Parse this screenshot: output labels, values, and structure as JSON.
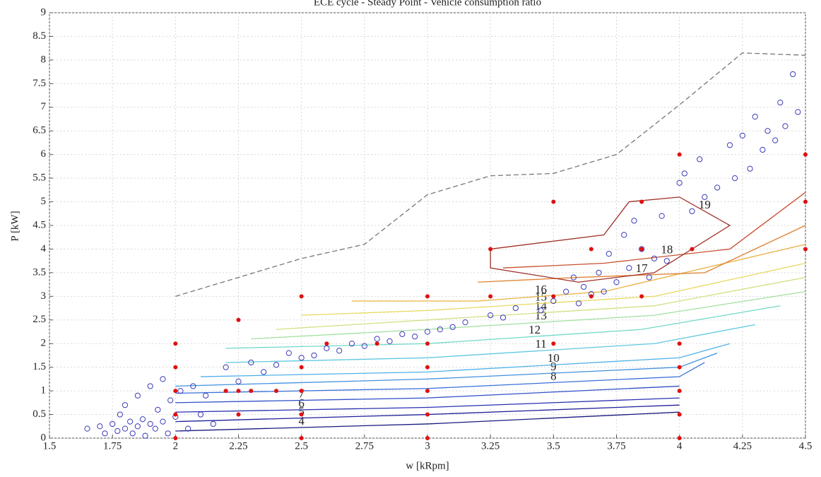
{
  "chart_data": {
    "type": "scatter",
    "title": "ECE cycle - Steady Point - Vehicle consumption ratio",
    "x_label": "w [kRpm]",
    "y_label": "P [kW]",
    "xlim": [
      1.5,
      4.5
    ],
    "xticks": [
      1.5,
      1.75,
      2,
      2.25,
      2.5,
      2.75,
      3,
      3.25,
      3.5,
      3.75,
      4,
      4.25,
      4.5
    ],
    "ylim": [
      0,
      9
    ],
    "yticks": [
      0,
      0.5,
      1,
      1.5,
      2,
      2.5,
      3,
      3.5,
      4,
      4.5,
      5,
      5.5,
      6,
      6.5,
      7,
      7.5,
      8,
      8.5,
      9
    ],
    "grid": true,
    "points": [
      {
        "kind": "circle",
        "color": "#3a3ab8",
        "x": [
          1.65,
          1.7,
          1.72,
          1.75,
          1.77,
          1.78,
          1.8,
          1.8,
          1.82,
          1.83,
          1.85,
          1.85,
          1.87,
          1.88,
          1.9,
          1.9,
          1.92,
          1.93,
          1.95,
          1.95,
          1.97,
          1.98,
          2,
          2.02,
          2.05,
          2.07,
          2.1,
          2.12,
          2.15,
          2.2,
          2.25,
          2.3,
          2.35,
          2.4,
          2.45,
          2.5,
          2.55,
          2.6,
          2.65,
          2.7,
          2.75,
          2.8,
          2.85,
          2.9,
          2.95,
          3,
          3.05,
          3.1,
          3.15,
          3.25,
          3.3,
          3.35,
          3.45,
          3.5,
          3.55,
          3.58,
          3.6,
          3.62,
          3.65,
          3.68,
          3.7,
          3.72,
          3.75,
          3.78,
          3.8,
          3.82,
          3.85,
          3.88,
          3.9,
          3.93,
          3.95,
          4.0,
          4.02,
          4.05,
          4.08,
          4.1,
          4.15,
          4.2,
          4.22,
          4.25,
          4.28,
          4.3,
          4.33,
          4.35,
          4.38,
          4.4,
          4.42,
          4.45,
          4.47
        ],
        "y": [
          0.2,
          0.25,
          0.1,
          0.3,
          0.15,
          0.5,
          0.2,
          0.7,
          0.35,
          0.1,
          0.25,
          0.9,
          0.4,
          0.05,
          0.3,
          1.1,
          0.2,
          0.6,
          0.35,
          1.25,
          0.1,
          0.8,
          0.45,
          1.0,
          0.2,
          1.1,
          0.5,
          0.9,
          0.3,
          1.5,
          1.2,
          1.6,
          1.4,
          1.55,
          1.8,
          1.7,
          1.75,
          1.9,
          1.85,
          2.0,
          1.95,
          2.1,
          2.05,
          2.2,
          2.15,
          2.25,
          2.3,
          2.35,
          2.45,
          2.6,
          2.55,
          2.75,
          2.7,
          2.9,
          3.1,
          3.4,
          2.85,
          3.2,
          3.05,
          3.5,
          3.1,
          3.9,
          3.3,
          4.3,
          3.6,
          4.6,
          4.0,
          3.4,
          3.8,
          4.7,
          3.75,
          5.4,
          5.6,
          4.8,
          5.9,
          5.1,
          5.3,
          6.2,
          5.5,
          6.4,
          5.7,
          6.8,
          6.1,
          6.5,
          6.3,
          7.1,
          6.6,
          7.7,
          6.9
        ]
      },
      {
        "kind": "dot",
        "color": "#e01010",
        "x": [
          2,
          2,
          2,
          2,
          2,
          2.25,
          2.25,
          2.25,
          2.2,
          2.3,
          2.4,
          2.5,
          2.5,
          2.5,
          2.5,
          2.5,
          2.6,
          2.8,
          3,
          3,
          3,
          3,
          3,
          3,
          3.25,
          3.25,
          3.5,
          3.5,
          3.5,
          3.65,
          3.65,
          3.85,
          3.85,
          3.85,
          4,
          4,
          4,
          4,
          4,
          4,
          4.05,
          4.5,
          4.5,
          4.5
        ],
        "y": [
          0,
          0.5,
          1,
          1.5,
          2,
          0.5,
          1,
          2.5,
          1,
          1,
          1,
          0,
          0.5,
          1,
          1.5,
          3,
          2,
          2,
          0,
          0.5,
          1,
          1.5,
          2,
          3,
          3,
          4,
          2,
          3,
          5,
          3,
          4,
          3,
          4,
          5,
          0,
          0.5,
          1,
          1.5,
          2,
          6,
          4,
          4,
          5,
          6
        ]
      }
    ],
    "boundary": {
      "color": "#777777",
      "x": [
        2,
        2.5,
        2.75,
        3,
        3.25,
        3.5,
        3.75,
        4,
        4.25,
        4.5
      ],
      "y": [
        3,
        3.8,
        4.1,
        5.15,
        5.55,
        5.6,
        6,
        7.05,
        8.15,
        8.1
      ]
    },
    "contours": [
      {
        "level": 4,
        "color": "#1a1a80",
        "x": [
          2,
          3,
          4
        ],
        "y": [
          0.15,
          0.3,
          0.55
        ]
      },
      {
        "level": 5,
        "color": "#20209a",
        "x": [
          2,
          3,
          4
        ],
        "y": [
          0.35,
          0.5,
          0.7
        ]
      },
      {
        "level": 6,
        "color": "#2a30b0",
        "x": [
          2,
          3,
          4
        ],
        "y": [
          0.55,
          0.65,
          0.85
        ]
      },
      {
        "level": 7,
        "color": "#3050c8",
        "x": [
          2,
          3,
          4
        ],
        "y": [
          0.75,
          0.85,
          1.1
        ]
      },
      {
        "level": 8,
        "color": "#3a70d8",
        "x": [
          2,
          3,
          4,
          4.1
        ],
        "y": [
          0.95,
          1.05,
          1.3,
          1.6
        ]
      },
      {
        "level": 9,
        "color": "#4090e0",
        "x": [
          2,
          3,
          4,
          4.15
        ],
        "y": [
          1.1,
          1.25,
          1.5,
          1.8
        ]
      },
      {
        "level": 10,
        "color": "#50b0e8",
        "x": [
          2.1,
          3,
          4,
          4.2
        ],
        "y": [
          1.3,
          1.4,
          1.7,
          2.0
        ]
      },
      {
        "level": 11,
        "color": "#60c8e0",
        "x": [
          2.2,
          3,
          3.9,
          4.3
        ],
        "y": [
          1.6,
          1.7,
          2.0,
          2.4
        ]
      },
      {
        "level": 12,
        "color": "#70d8c8",
        "x": [
          2.2,
          3,
          3.85,
          4.4
        ],
        "y": [
          1.9,
          2.0,
          2.3,
          2.8
        ]
      },
      {
        "level": 13,
        "color": "#a0e0a0",
        "x": [
          2.3,
          3,
          3.9,
          4.5
        ],
        "y": [
          2.1,
          2.3,
          2.6,
          3.1
        ]
      },
      {
        "level": 14,
        "color": "#d0e080",
        "x": [
          2.4,
          3,
          3.9,
          4.5
        ],
        "y": [
          2.3,
          2.5,
          2.8,
          3.4
        ]
      },
      {
        "level": 15,
        "color": "#e8d860",
        "x": [
          2.5,
          3,
          3.9,
          4.5
        ],
        "y": [
          2.6,
          2.7,
          3.0,
          3.7
        ]
      },
      {
        "level": 16,
        "color": "#e8b040",
        "x": [
          2.7,
          3.2,
          3.7,
          4.5
        ],
        "y": [
          2.9,
          2.9,
          3.1,
          4.1
        ]
      },
      {
        "level": 17,
        "color": "#e08030",
        "x": [
          3.2,
          3.6,
          4.1,
          4.5
        ],
        "y": [
          3.3,
          3.4,
          3.5,
          4.5
        ]
      },
      {
        "level": 18,
        "color": "#c85030",
        "x": [
          3.3,
          3.7,
          4.2,
          4.5
        ],
        "y": [
          3.6,
          3.7,
          4.0,
          5.2
        ]
      },
      {
        "level": 19,
        "color": "#a03028",
        "x": [
          3.25,
          3.7,
          3.8,
          4.0,
          4.2,
          3.9,
          3.6,
          3.25,
          3.25
        ],
        "y": [
          4.0,
          4.3,
          5.0,
          5.1,
          4.5,
          3.5,
          3.3,
          3.6,
          4.0
        ]
      }
    ]
  }
}
